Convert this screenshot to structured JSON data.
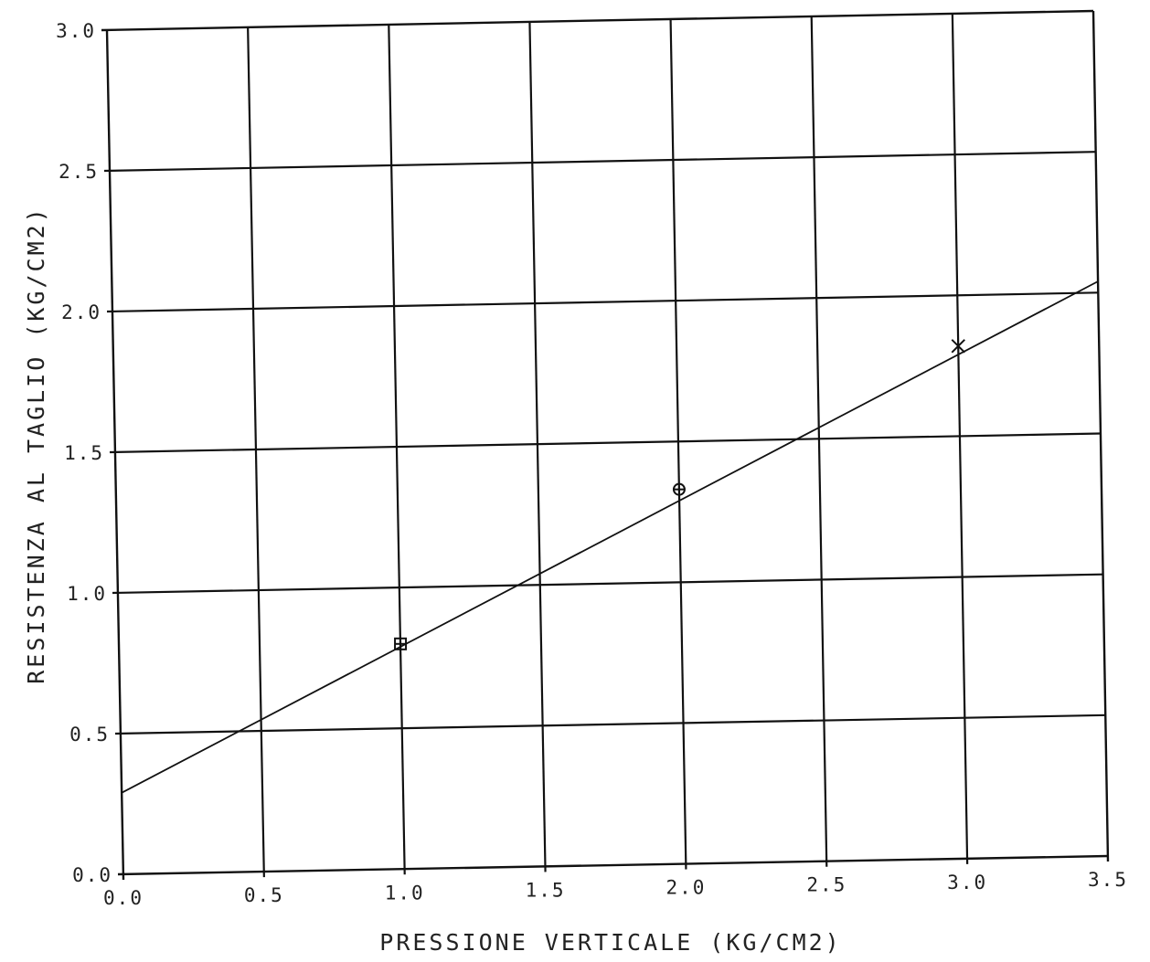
{
  "chart_data": {
    "type": "scatter",
    "title": "",
    "xlabel": "PRESSIONE VERTICALE  (KG/CM2)",
    "ylabel": "RESISTENZA AL TAGLIO  (KG/CM2)",
    "xlim": [
      0.0,
      3.5
    ],
    "ylim": [
      0.0,
      3.0
    ],
    "x_ticks": [
      "0.0",
      "0.5",
      "1.0",
      "1.5",
      "2.0",
      "2.5",
      "3.0",
      "3.5"
    ],
    "y_ticks": [
      "0.0",
      "0.5",
      "1.0",
      "1.5",
      "2.0",
      "2.5",
      "3.0"
    ],
    "grid": true,
    "points": [
      {
        "x": 1.0,
        "y": 0.8,
        "marker": "square"
      },
      {
        "x": 2.0,
        "y": 1.33,
        "marker": "circle"
      },
      {
        "x": 3.0,
        "y": 1.82,
        "marker": "x"
      }
    ],
    "fit_line": {
      "x": [
        0.0,
        3.5
      ],
      "y": [
        0.29,
        2.04
      ]
    }
  }
}
